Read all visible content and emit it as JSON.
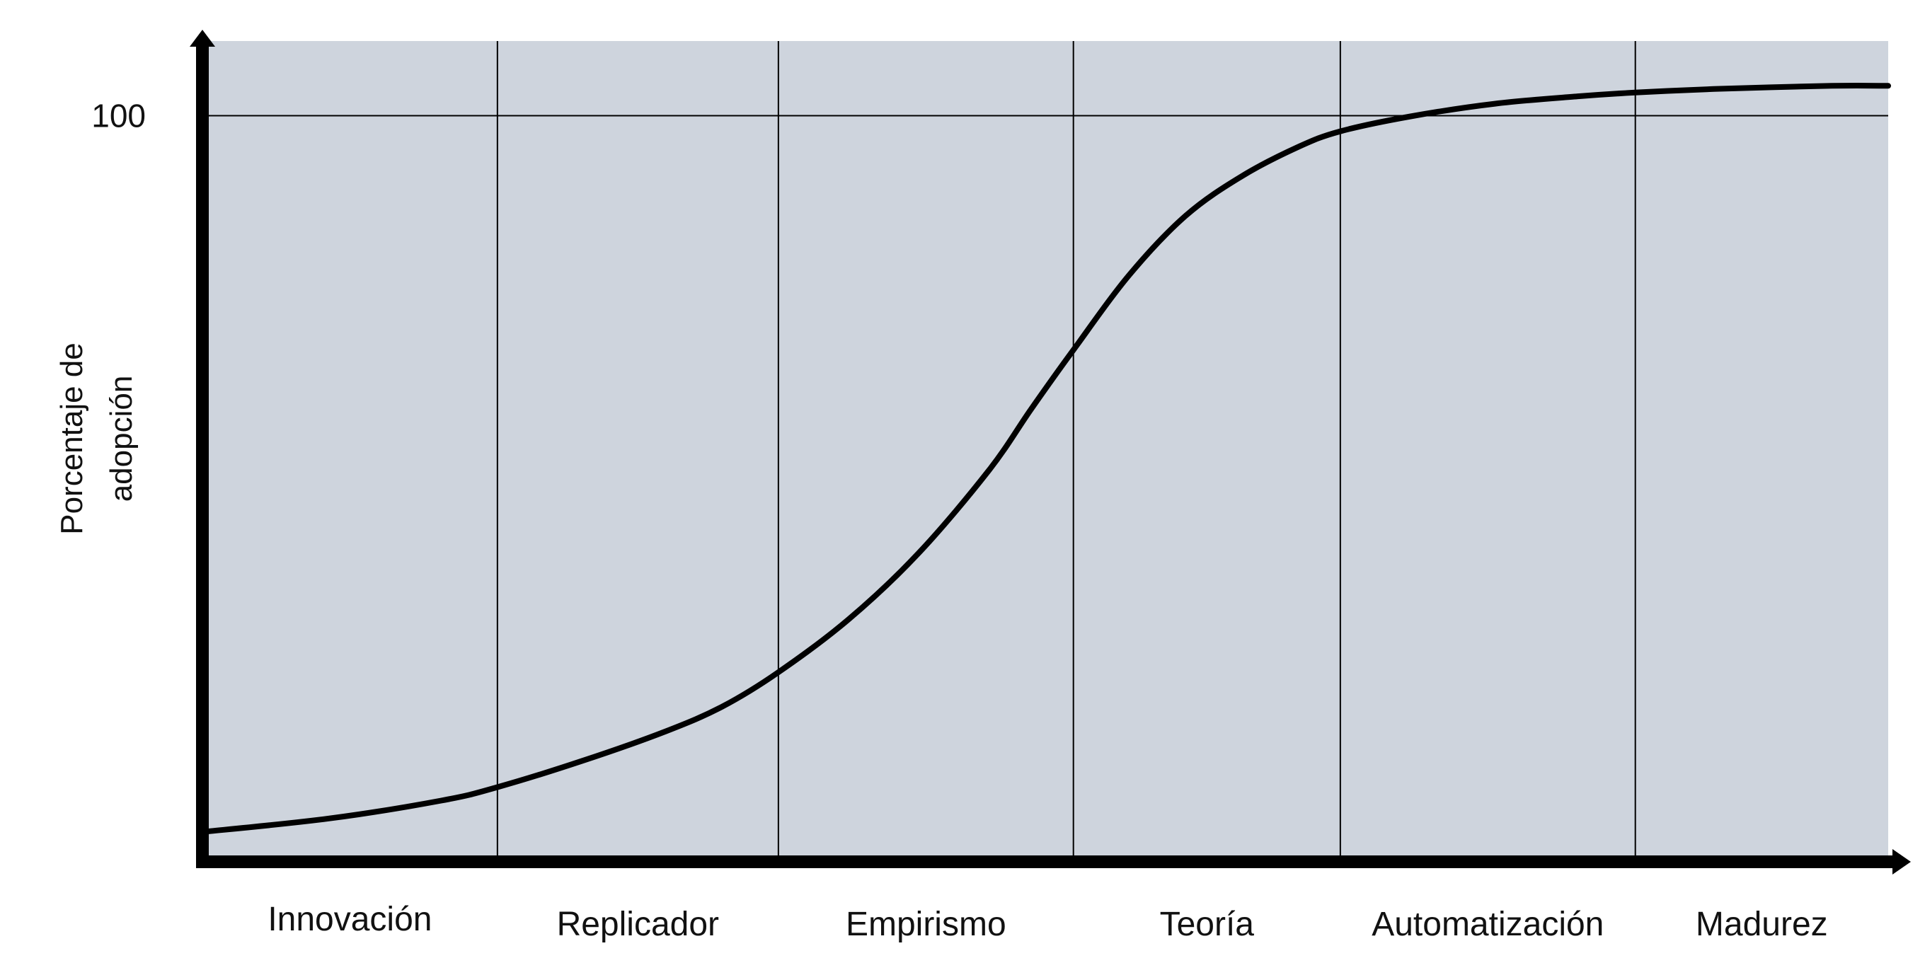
{
  "colors": {
    "plot_background": "#CED4DD",
    "axis": "#000000",
    "curve": "#000000",
    "grid": "#000000"
  },
  "chart_data": {
    "type": "line",
    "title": "",
    "xlabel": "",
    "ylabel_lines": [
      "Porcentaje de",
      "adopción"
    ],
    "categories": [
      "Innovación",
      "Replicador",
      "Empirismo",
      "Teoría",
      "Automatización",
      "Madurez"
    ],
    "y_ticks": [
      "100"
    ],
    "ylim": [
      0,
      110
    ],
    "grid": {
      "vertical_category_boundaries": true,
      "horizontal_at": [
        100
      ]
    },
    "legend": "none",
    "axis_arrows": true,
    "category_boundaries": [
      0,
      1.05,
      2.05,
      3.1,
      4.05,
      5.1,
      6.0
    ],
    "series": [
      {
        "x": [
          0,
          0.45,
          0.85,
          1.05,
          1.35,
          1.65,
          1.85,
          2.05,
          2.3,
          2.55,
          2.8,
          2.95,
          3.1,
          3.3,
          3.5,
          3.7,
          3.9,
          4.05,
          4.3,
          4.6,
          4.9,
          5.1,
          5.4,
          5.8,
          6.0
        ],
        "y": [
          4,
          5.8,
          8.2,
          10,
          13.5,
          17.5,
          20.8,
          25.4,
          32.5,
          41.4,
          52.5,
          60.7,
          68.6,
          78.7,
          86.6,
          91.9,
          95.8,
          97.9,
          99.9,
          101.6,
          102.6,
          103.1,
          103.6,
          104,
          104
        ]
      }
    ]
  }
}
